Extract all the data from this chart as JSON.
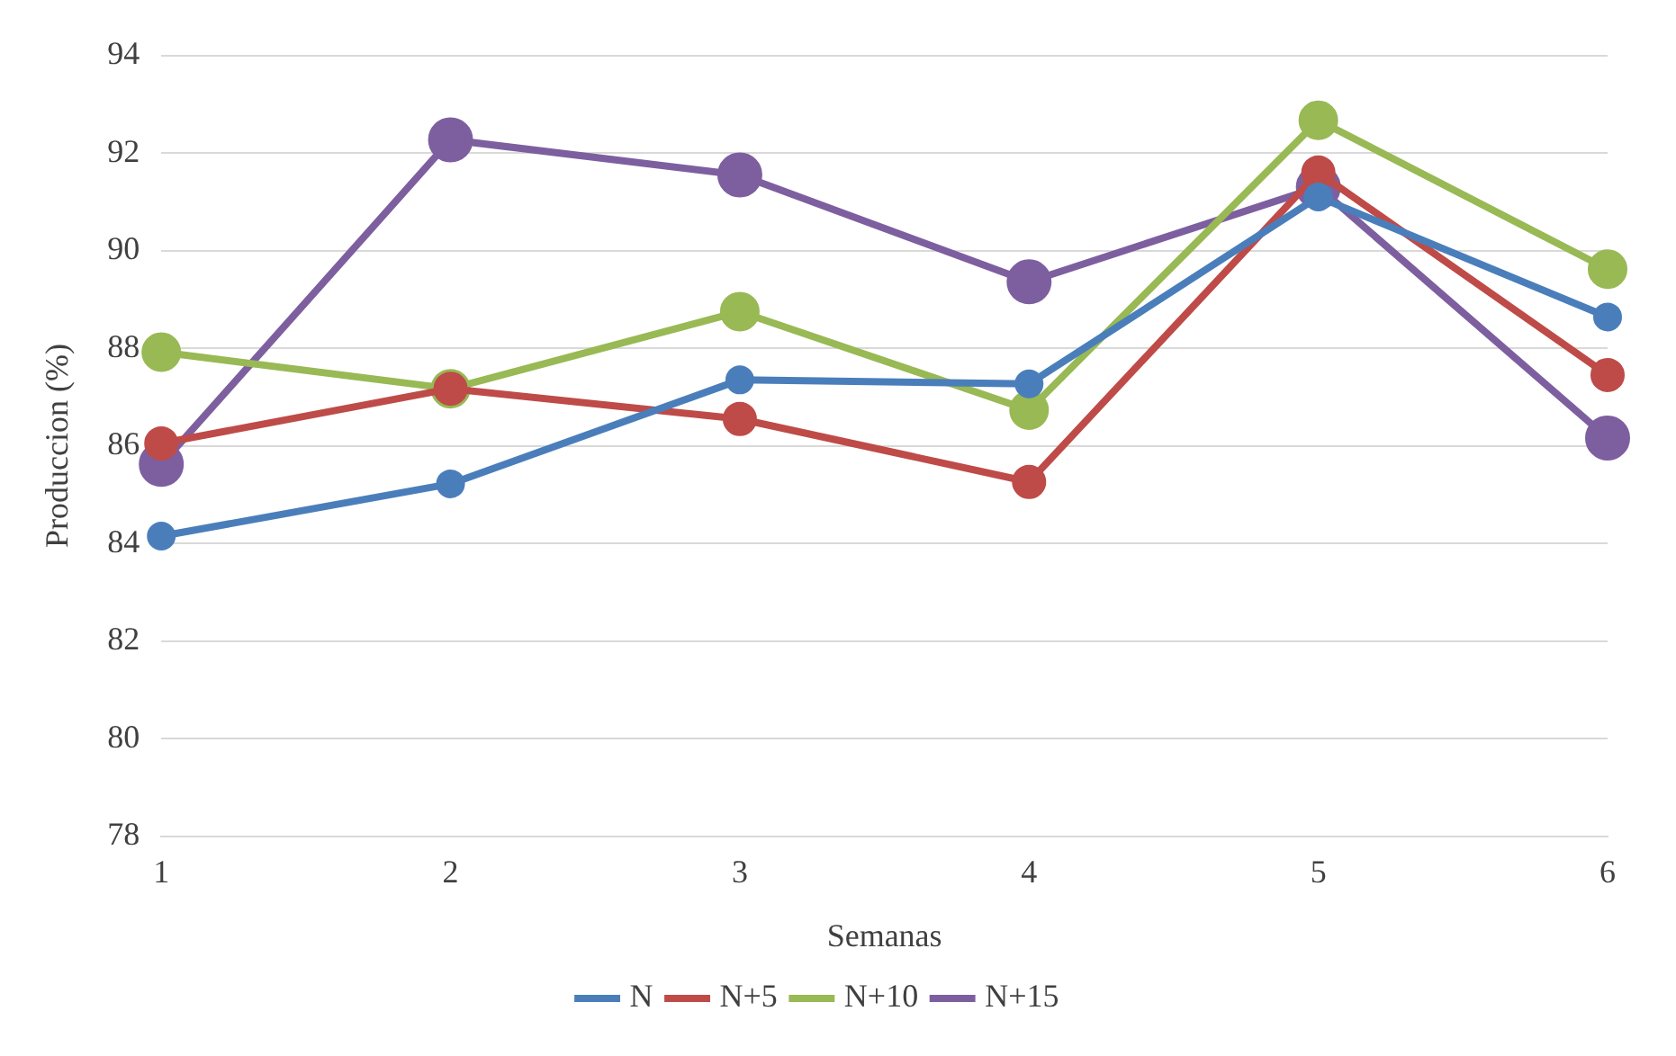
{
  "chart_data": {
    "type": "line",
    "xlabel": "Semanas",
    "ylabel": "Produccion (%)",
    "categories": [
      "1",
      "2",
      "3",
      "4",
      "5",
      "6"
    ],
    "series": [
      {
        "name": "N",
        "color": "#4a7ebb",
        "values": [
          84.15,
          85.22,
          87.35,
          87.27,
          91.1,
          88.64
        ]
      },
      {
        "name": "N+5",
        "color": "#be4b48",
        "values": [
          86.05,
          87.17,
          86.55,
          85.26,
          91.6,
          87.45
        ]
      },
      {
        "name": "N+10",
        "color": "#98b954",
        "values": [
          87.92,
          87.17,
          88.75,
          86.73,
          92.67,
          89.62
        ]
      },
      {
        "name": "N+15",
        "color": "#7d5fa0",
        "values": [
          85.62,
          92.27,
          91.55,
          89.36,
          91.3,
          86.16
        ]
      }
    ],
    "ylim": [
      78,
      94
    ],
    "yticks": [
      78,
      80,
      82,
      84,
      86,
      88,
      90,
      92,
      94
    ],
    "grid": "y",
    "legend": "bottom",
    "marker": "circle",
    "line_style": "solid"
  }
}
